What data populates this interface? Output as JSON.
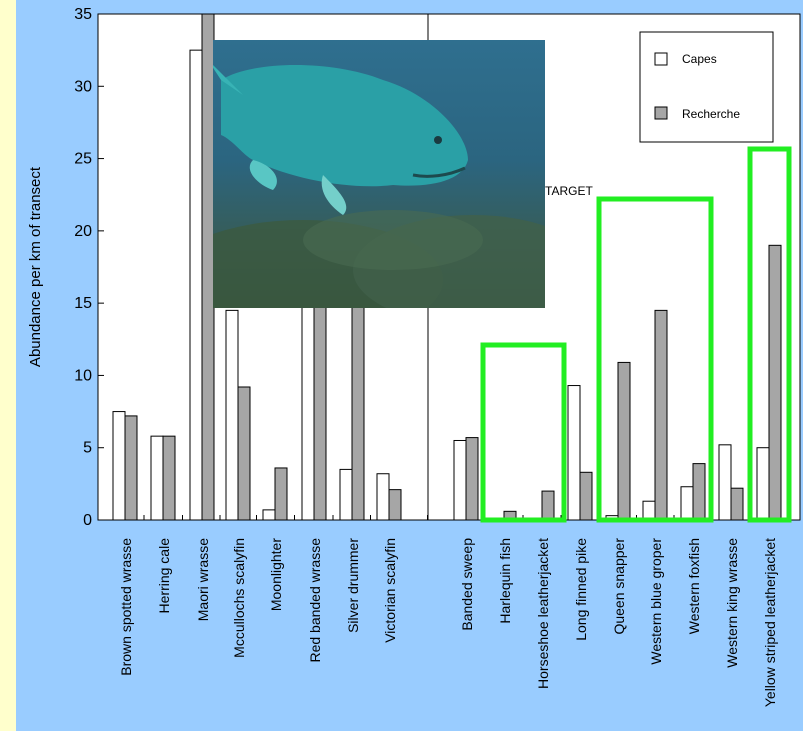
{
  "chart_data": {
    "type": "bar",
    "ylabel": "Abundance per km of transect",
    "ylim": [
      0,
      35
    ],
    "yticks": [
      0,
      5,
      10,
      15,
      20,
      25,
      30,
      35
    ],
    "categories": [
      "Brown spotted wrasse",
      "Herring cale",
      "Maori wrasse",
      "Mccullochs scalyfin",
      "Moonlighter",
      "Red banded wrasse",
      "Silver drummer",
      "Victorian scalyfin",
      "Banded sweep",
      "Harlequin fish",
      "Horseshoe leatherjacket",
      "Long finned pike",
      "Queen snapper",
      "Western blue groper",
      "Western foxfish",
      "Western king wrasse",
      "Yellow striped leatherjacket"
    ],
    "series": [
      {
        "name": "Capes",
        "color": "#ffffff",
        "values": [
          7.5,
          5.8,
          32.5,
          14.5,
          0.7,
          16.0,
          3.5,
          3.2,
          5.5,
          0.0,
          0.1,
          9.3,
          0.3,
          1.3,
          2.3,
          5.2,
          5.0
        ]
      },
      {
        "name": "Recherche",
        "color": "#a6a6a6",
        "values": [
          7.2,
          5.8,
          35.0,
          9.2,
          3.6,
          16.0,
          16.0,
          2.1,
          5.7,
          0.6,
          2.0,
          3.3,
          10.9,
          14.5,
          3.9,
          2.2,
          19.0
        ]
      }
    ],
    "annotations": {
      "target_label": "TARGET",
      "highlight_color": "#22ee22"
    },
    "legend_position": "top-right"
  }
}
